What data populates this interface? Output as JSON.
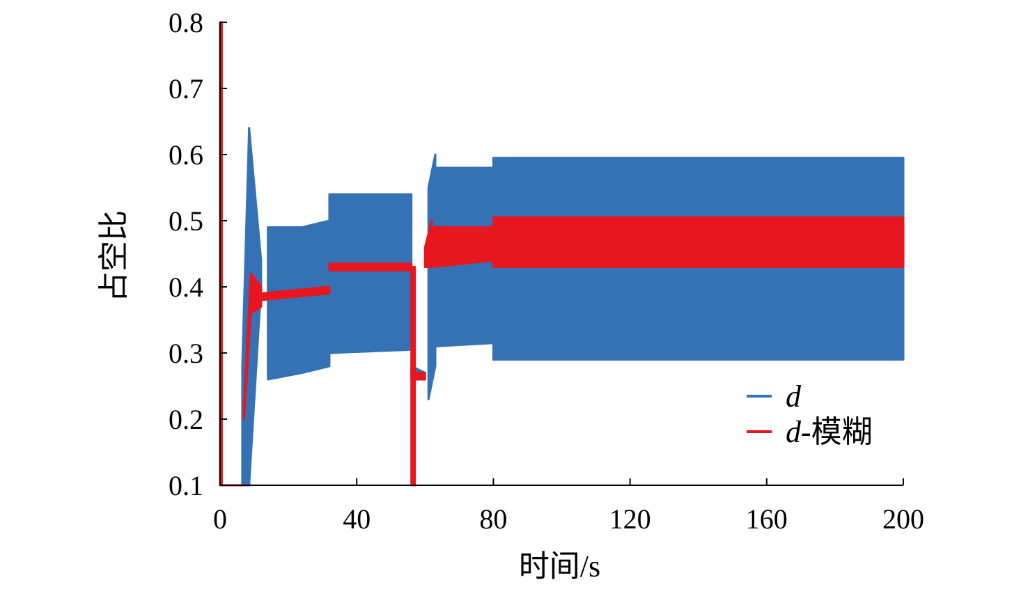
{
  "chart_data": {
    "type": "line",
    "title": "",
    "xlabel": "时间/s",
    "ylabel": "占空比",
    "xlim": [
      0,
      200
    ],
    "ylim": [
      0.1,
      0.8
    ],
    "xticks": [
      "0",
      "40",
      "80",
      "120",
      "160",
      "200"
    ],
    "yticks": [
      "0.1",
      "0.2",
      "0.3",
      "0.4",
      "0.5",
      "0.6",
      "0.7",
      "0.8"
    ],
    "grid": false,
    "legend_position": "bottom-right",
    "series": [
      {
        "name_main": "d",
        "name_suffix": "",
        "color": "#3572b5",
        "segments": [
          {
            "t0": 0,
            "t1": 6.5,
            "lower": [
              0.1,
              0.1
            ],
            "upper": [
              0.1,
              0.1
            ]
          },
          {
            "t0": 6.5,
            "t1": 8.5,
            "lower": [
              0.1,
              0.1
            ],
            "upper": [
              0.28,
              0.64
            ]
          },
          {
            "t0": 8.5,
            "t1": 12,
            "lower": [
              0.1,
              0.4
            ],
            "upper": [
              0.64,
              0.44
            ]
          },
          {
            "t0": 14,
            "t1": 24,
            "lower": [
              0.26,
              0.27
            ],
            "upper": [
              0.49,
              0.49
            ]
          },
          {
            "t0": 24,
            "t1": 32,
            "lower": [
              0.27,
              0.28
            ],
            "upper": [
              0.49,
              0.5
            ]
          },
          {
            "t0": 32,
            "t1": 56,
            "lower": [
              0.3,
              0.305
            ],
            "upper": [
              0.54,
              0.54
            ]
          },
          {
            "t0": 56,
            "t1": 60,
            "lower": [
              0.26,
              0.27
            ],
            "upper": [
              0.28,
              0.27
            ]
          },
          {
            "t0": 61,
            "t1": 63,
            "lower": [
              0.23,
              0.28
            ],
            "upper": [
              0.55,
              0.6
            ]
          },
          {
            "t0": 63,
            "t1": 80,
            "lower": [
              0.31,
              0.315
            ],
            "upper": [
              0.58,
              0.58
            ]
          },
          {
            "t0": 80,
            "t1": 200,
            "lower": [
              0.29,
              0.29
            ],
            "upper": [
              0.595,
              0.595
            ]
          }
        ]
      },
      {
        "name_main": "d",
        "name_suffix": "-模糊",
        "color": "#e8161f",
        "segments": [
          {
            "t0": 0,
            "t1": 0.5,
            "lower": [
              0.1,
              0.1
            ],
            "upper": [
              0.8,
              0.8
            ]
          },
          {
            "t0": 0.5,
            "t1": 7,
            "lower": [
              0.1,
              0.1
            ],
            "upper": [
              0.1,
              0.1
            ]
          },
          {
            "t0": 7,
            "t1": 9,
            "lower": [
              0.2,
              0.36
            ],
            "upper": [
              0.22,
              0.42
            ]
          },
          {
            "t0": 9,
            "t1": 12,
            "lower": [
              0.36,
              0.37
            ],
            "upper": [
              0.42,
              0.4
            ]
          },
          {
            "t0": 12,
            "t1": 32,
            "lower": [
              0.38,
              0.39
            ],
            "upper": [
              0.39,
              0.4
            ]
          },
          {
            "t0": 32,
            "t1": 56,
            "lower": [
              0.425,
              0.425
            ],
            "upper": [
              0.435,
              0.435
            ]
          },
          {
            "t0": 56,
            "t1": 57,
            "lower": [
              0.1,
              0.1
            ],
            "upper": [
              0.43,
              0.43
            ]
          },
          {
            "t0": 57,
            "t1": 60,
            "lower": [
              0.26,
              0.26
            ],
            "upper": [
              0.27,
              0.27
            ]
          },
          {
            "t0": 60,
            "t1": 62,
            "lower": [
              0.43,
              0.43
            ],
            "upper": [
              0.46,
              0.5
            ]
          },
          {
            "t0": 62,
            "t1": 80,
            "lower": [
              0.43,
              0.44
            ],
            "upper": [
              0.49,
              0.49
            ]
          },
          {
            "t0": 80,
            "t1": 200,
            "lower": [
              0.43,
              0.43
            ],
            "upper": [
              0.505,
              0.505
            ]
          }
        ]
      }
    ]
  }
}
